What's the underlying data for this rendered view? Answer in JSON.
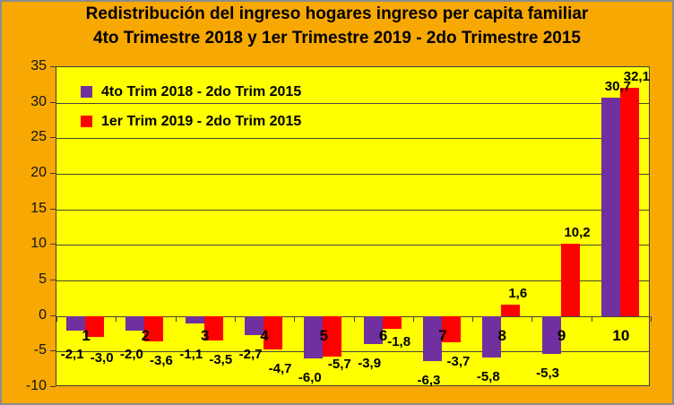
{
  "title": {
    "line1": "Redistribución del ingreso hogares ingreso per capita familiar",
    "line2": "4to Trimestre 2018 y 1er Trimestre 2019 - 2do Trimestre 2015"
  },
  "colors": {
    "chart_background": "#F7A803",
    "plot_background": "#FFFF00",
    "frame_border": "#8C8C8C",
    "gridline": "#454536",
    "series1": "#7030A0",
    "series2": "#FF0000"
  },
  "chart_data": {
    "type": "bar",
    "title": "Redistribución del ingreso hogares ingreso per capita familiar 4to Trimestre 2018 y 1er Trimestre 2019 - 2do Trimestre 2015",
    "categories": [
      "1",
      "2",
      "3",
      "4",
      "5",
      "6",
      "7",
      "8",
      "9",
      "10"
    ],
    "series": [
      {
        "name": "4to Trim 2018 - 2do Trim 2015",
        "color": "#7030A0",
        "values": [
          -2.1,
          -2.0,
          -1.1,
          -2.7,
          -6.0,
          -3.9,
          -6.3,
          -5.8,
          -5.3,
          30.7
        ],
        "labels": [
          "-2,1",
          "-2,0",
          "-1,1",
          "-2,7",
          "-6,0",
          "-3,9",
          "-6,3",
          "-5,8",
          "-5,3",
          "30,7"
        ]
      },
      {
        "name": "1er Trim 2019 - 2do Trim 2015",
        "color": "#FF0000",
        "values": [
          -3.0,
          -3.6,
          -3.5,
          -4.7,
          -5.7,
          -1.8,
          -3.7,
          1.6,
          10.2,
          32.1
        ],
        "labels": [
          "-3,0",
          "-3,6",
          "-3,5",
          "-4,7",
          "-5,7",
          "-1,8",
          "-3,7",
          "1,6",
          "10,2",
          "32,1"
        ]
      }
    ],
    "xlabel": "",
    "ylabel": "",
    "ylim": [
      -10,
      35
    ],
    "ytick_step": 5,
    "ytick_labels": [
      "35",
      "30",
      "25",
      "20",
      "15",
      "10",
      "5",
      "0",
      "-5",
      "-10"
    ],
    "grid": true,
    "legend_position": "top-left"
  }
}
